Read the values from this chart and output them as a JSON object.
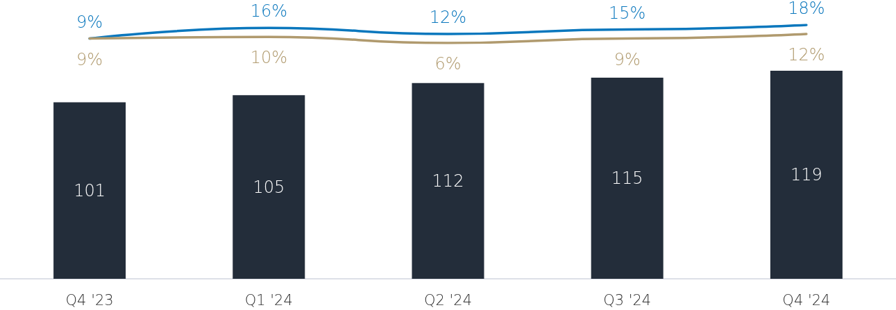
{
  "chart_data": [
    {
      "type": "line",
      "categories": [
        null,
        null,
        null,
        null,
        null
      ],
      "tick_labels": false,
      "marker": "none",
      "series": [
        {
          "color": "#0a77bd",
          "values": [
            9,
            16,
            12,
            15,
            18
          ],
          "value_labels": [
            "9%",
            "16%",
            "12%",
            "15%",
            "18%"
          ]
        },
        {
          "color": "#b09a6e",
          "values": [
            9,
            10,
            6,
            9,
            12
          ],
          "value_labels": [
            "9%",
            "10%",
            "6%",
            "9%",
            "12%"
          ]
        }
      ]
    },
    {
      "type": "bar",
      "categories": [
        "Q4 '23",
        "Q1 '24",
        "Q2 '24",
        "Q3 '24",
        "Q4 '24"
      ],
      "color": "#232d3a",
      "values": [
        101,
        105,
        112,
        115,
        119
      ],
      "data_labels": true,
      "grid": false
    }
  ]
}
